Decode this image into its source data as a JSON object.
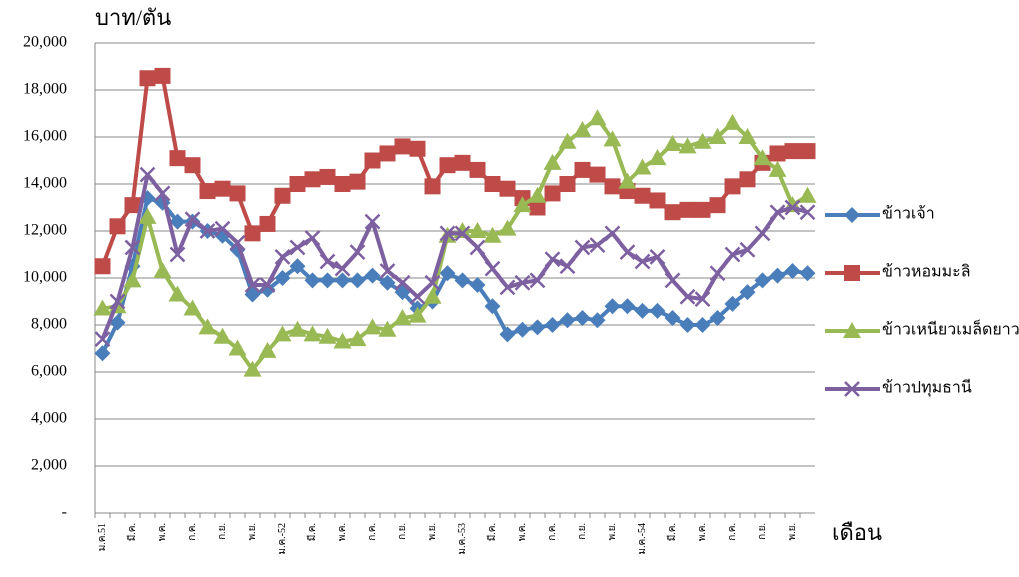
{
  "chart_data": {
    "type": "line",
    "y_label": "บาท/ตัน",
    "x_label": "เดือน",
    "categories": [
      "ม.ค.51",
      null,
      "มี.ค.",
      null,
      "พ.ค.",
      null,
      "ก.ค.",
      null,
      "ก.ย.",
      null,
      "พ.ย.",
      null,
      "ม.ค.-52",
      null,
      "มี.ค.",
      null,
      "พ.ค.",
      null,
      "ก.ค.",
      null,
      "ก.ย.",
      null,
      "พ.ย.",
      null,
      "ม.ค.-53",
      null,
      "มี.ค.",
      null,
      "พ.ค.",
      null,
      "ก.ค.",
      null,
      "ก.ย.",
      null,
      "พ.ย.",
      null,
      "ม.ค.-54",
      null,
      "มี.ค.",
      null,
      "พ.ค.",
      null,
      "ก.ค.",
      null,
      "ก.ย.",
      null,
      "พ.ย.",
      null
    ],
    "series": [
      {
        "name": "ข้าวเจ้า",
        "color": "#4a7ebb",
        "marker": "diamond",
        "values": [
          6800,
          8100,
          10500,
          13400,
          13200,
          12400,
          12400,
          12000,
          11800,
          11200,
          9300,
          9500,
          10000,
          10500,
          9900,
          9900,
          9900,
          9900,
          10100,
          9800,
          9400,
          8700,
          9000,
          10200,
          9900,
          9700,
          8800,
          7600,
          7800,
          7900,
          8000,
          8200,
          8300,
          8200,
          8800,
          8800,
          8600,
          8600,
          8300,
          8000,
          8000,
          8300,
          8900,
          9400,
          9900,
          10100,
          10300,
          10200
        ]
      },
      {
        "name": "ข้าวหอมมะลิ",
        "color": "#be4b48",
        "marker": "square",
        "values": [
          10500,
          12200,
          13100,
          18500,
          18600,
          15100,
          14800,
          13700,
          13800,
          13600,
          11900,
          12300,
          13500,
          14000,
          14200,
          14300,
          14000,
          14100,
          15000,
          15300,
          15600,
          15500,
          13900,
          14800,
          14900,
          14600,
          14000,
          13800,
          13400,
          13000,
          13600,
          14000,
          14600,
          14400,
          13900,
          13700,
          13500,
          13300,
          12800,
          12900,
          12900,
          13100,
          13900,
          14200,
          14900,
          15300,
          15400,
          15400
        ]
      },
      {
        "name": "ข้าวเหนียวเมล็ดยาว",
        "color": "#98b954",
        "marker": "triangle",
        "values": [
          8700,
          8800,
          9900,
          12600,
          10300,
          9300,
          8700,
          7900,
          7500,
          7000,
          6100,
          6900,
          7600,
          7800,
          7600,
          7500,
          7300,
          7400,
          7900,
          7800,
          8300,
          8400,
          9200,
          11800,
          12000,
          12000,
          11800,
          12100,
          13100,
          13500,
          14900,
          15800,
          16300,
          16800,
          15900,
          14100,
          14700,
          15100,
          15700,
          15600,
          15800,
          16000,
          16600,
          16000,
          15100,
          14600,
          13100,
          13500
        ]
      },
      {
        "name": "ข้าวปทุมธานี",
        "color": "#7d60a0",
        "marker": "x",
        "values": [
          7400,
          9000,
          11300,
          14400,
          13600,
          11000,
          12500,
          12000,
          12100,
          11500,
          9700,
          9700,
          10900,
          11300,
          11700,
          10700,
          10400,
          11100,
          12400,
          10300,
          9800,
          9200,
          9800,
          11900,
          11900,
          11300,
          10400,
          9600,
          9800,
          9900,
          10800,
          10500,
          11300,
          11400,
          11900,
          11100,
          10700,
          10900,
          9900,
          9200,
          9100,
          10200,
          11000,
          11200,
          11900,
          12800,
          13000,
          12800
        ]
      }
    ],
    "ylim": [
      0,
      20000
    ],
    "yticks": [
      {
        "value": 0,
        "label": "-"
      },
      {
        "value": 2000,
        "label": "2,000"
      },
      {
        "value": 4000,
        "label": "4,000"
      },
      {
        "value": 6000,
        "label": "6,000"
      },
      {
        "value": 8000,
        "label": "8,000"
      },
      {
        "value": 10000,
        "label": "10,000"
      },
      {
        "value": 12000,
        "label": "12,000"
      },
      {
        "value": 14000,
        "label": "14,000"
      },
      {
        "value": 16000,
        "label": "16,000"
      },
      {
        "value": 18000,
        "label": "18,000"
      },
      {
        "value": 20000,
        "label": "20,000"
      }
    ],
    "grid": true,
    "legend": "right"
  }
}
